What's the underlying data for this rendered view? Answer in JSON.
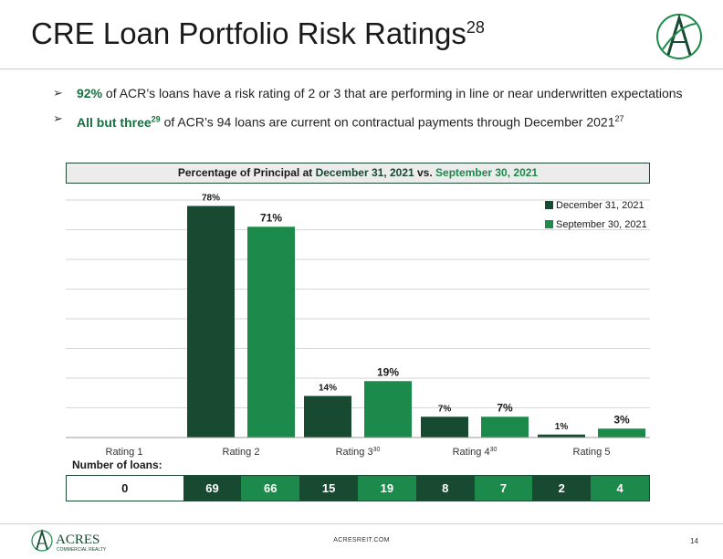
{
  "slide": {
    "title": "CRE Loan Portfolio Risk Ratings",
    "title_footnote": "28",
    "bullets": [
      {
        "highlight": "92%",
        "text": " of ACR’s loans have a risk rating of 2 or 3 that are performing in line or near underwritten expectations"
      },
      {
        "highlight": "All but three",
        "highlight_footnote": "29",
        "text": " of ACR’s 94 loans are current on contractual payments through December 2021",
        "footnote": "27"
      }
    ],
    "chart_header": {
      "prefix": "Percentage of Principal at ",
      "date1": "December 31, 2021",
      "mid": " vs. ",
      "date2": "September 30, 2021"
    },
    "loans_label": "Number of loans:",
    "loans": [
      "0",
      "69",
      "66",
      "15",
      "19",
      "8",
      "7",
      "2",
      "4"
    ],
    "footer_url": "ACRESREIT.COM",
    "page_number": "14",
    "logo_text": "ACRES",
    "logo_subtext": "COMMERCIAL REALTY"
  },
  "colors": {
    "dark_green": "#174a30",
    "light_green": "#1b8a4a"
  },
  "chart_data": {
    "type": "bar",
    "categories": [
      "Rating 1",
      "Rating 2",
      "Rating 3",
      "Rating 4",
      "Rating 5"
    ],
    "category_footnotes": [
      "",
      "",
      "30",
      "30",
      ""
    ],
    "series": [
      {
        "name": "December 31, 2021",
        "color": "#174a30",
        "values": [
          null,
          78,
          14,
          7,
          1
        ],
        "labels": [
          "",
          "78%",
          "14%",
          "7%",
          "1%"
        ]
      },
      {
        "name": "September 30, 2021",
        "color": "#1b8a4a",
        "values": [
          null,
          71,
          19,
          7,
          3
        ],
        "labels": [
          "",
          "71%",
          "19%",
          "7%",
          "3%"
        ]
      }
    ],
    "ylim": [
      0,
      80
    ],
    "grid": true,
    "legend_position": "top-right"
  }
}
